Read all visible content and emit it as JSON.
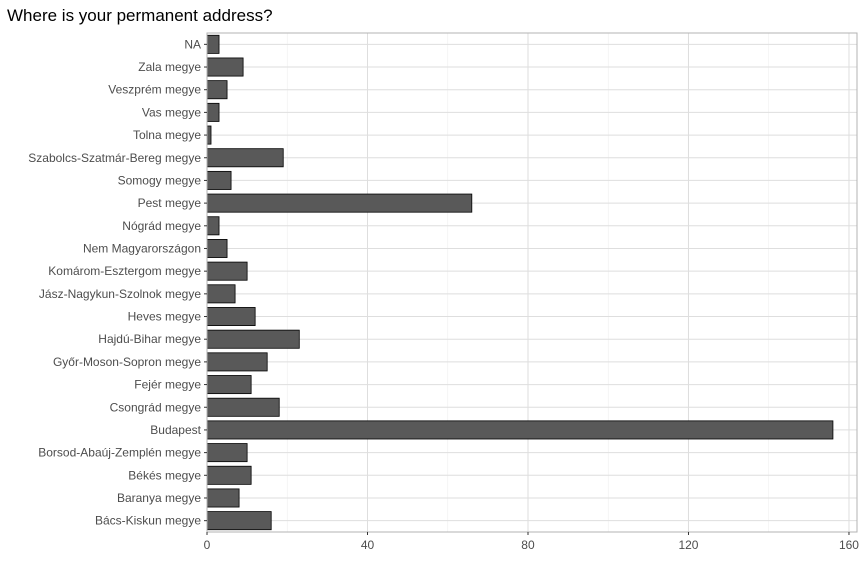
{
  "chart_data": {
    "type": "bar",
    "orientation": "horizontal",
    "title": "Where is your permanent address?",
    "xlabel": "",
    "ylabel": "",
    "categories": [
      "NA",
      "Zala megye",
      "Veszprém megye",
      "Vas megye",
      "Tolna megye",
      "Szabolcs-Szatmár-Bereg megye",
      "Somogy megye",
      "Pest megye",
      "Nógrád megye",
      "Nem Magyarországon",
      "Komárom-Esztergom megye",
      "Jász-Nagykun-Szolnok megye",
      "Heves megye",
      "Hajdú-Bihar megye",
      "Győr-Moson-Sopron megye",
      "Fejér megye",
      "Csongrád megye",
      "Budapest",
      "Borsod-Abaúj-Zemplén megye",
      "Békés megye",
      "Baranya megye",
      "Bács-Kiskun megye"
    ],
    "values": [
      3,
      9,
      5,
      3,
      1,
      19,
      6,
      66,
      3,
      5,
      10,
      7,
      12,
      23,
      15,
      11,
      18,
      156,
      10,
      11,
      8,
      16
    ],
    "xlim": [
      0,
      162
    ],
    "xticks": [
      0,
      40,
      80,
      120,
      160
    ],
    "grid": true,
    "bar_color": "#595959",
    "bar_edge_color": "#000000",
    "grid_color": "#dedede"
  }
}
